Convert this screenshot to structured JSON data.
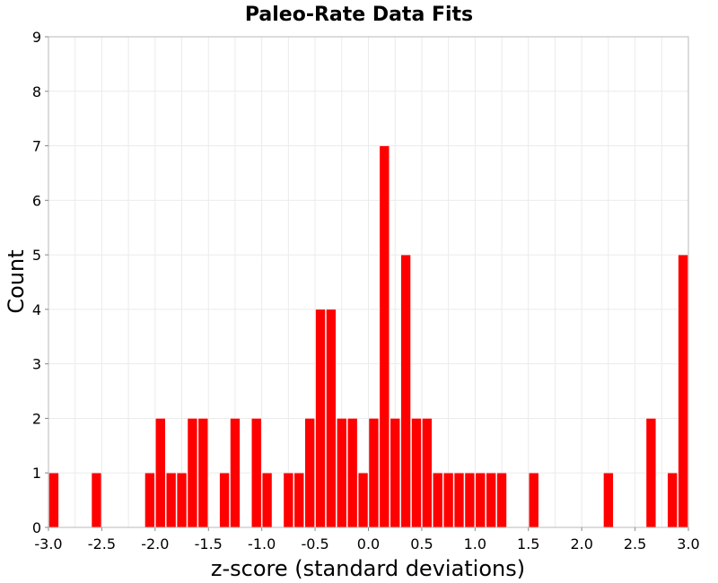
{
  "chart_data": {
    "type": "bar",
    "title": "Paleo-Rate Data Fits",
    "xlabel": "z-score (standard deviations)",
    "ylabel": "Count",
    "xlim": [
      -3.0,
      3.0
    ],
    "ylim": [
      0,
      9
    ],
    "bin_width": 0.1,
    "x_ticks": [
      "-3.0",
      "-2.5",
      "-2.0",
      "-1.5",
      "-1.0",
      "-0.5",
      "0.0",
      "0.5",
      "1.0",
      "1.5",
      "2.0",
      "2.5",
      "3.0"
    ],
    "y_ticks": [
      "0",
      "1",
      "2",
      "3",
      "4",
      "5",
      "6",
      "7",
      "8",
      "9"
    ],
    "grid": true,
    "bar_color": "#ff0000",
    "bins": [
      {
        "x": -2.95,
        "count": 1
      },
      {
        "x": -2.55,
        "count": 1
      },
      {
        "x": -2.05,
        "count": 1
      },
      {
        "x": -1.95,
        "count": 2
      },
      {
        "x": -1.85,
        "count": 1
      },
      {
        "x": -1.75,
        "count": 1
      },
      {
        "x": -1.65,
        "count": 2
      },
      {
        "x": -1.55,
        "count": 2
      },
      {
        "x": -1.35,
        "count": 1
      },
      {
        "x": -1.25,
        "count": 2
      },
      {
        "x": -1.05,
        "count": 2
      },
      {
        "x": -0.95,
        "count": 1
      },
      {
        "x": -0.75,
        "count": 1
      },
      {
        "x": -0.65,
        "count": 1
      },
      {
        "x": -0.55,
        "count": 2
      },
      {
        "x": -0.45,
        "count": 4
      },
      {
        "x": -0.35,
        "count": 4
      },
      {
        "x": -0.25,
        "count": 2
      },
      {
        "x": -0.15,
        "count": 2
      },
      {
        "x": -0.05,
        "count": 1
      },
      {
        "x": 0.05,
        "count": 2
      },
      {
        "x": 0.15,
        "count": 7
      },
      {
        "x": 0.25,
        "count": 2
      },
      {
        "x": 0.35,
        "count": 5
      },
      {
        "x": 0.45,
        "count": 2
      },
      {
        "x": 0.55,
        "count": 2
      },
      {
        "x": 0.65,
        "count": 1
      },
      {
        "x": 0.75,
        "count": 1
      },
      {
        "x": 0.85,
        "count": 1
      },
      {
        "x": 0.95,
        "count": 1
      },
      {
        "x": 1.05,
        "count": 1
      },
      {
        "x": 1.15,
        "count": 1
      },
      {
        "x": 1.25,
        "count": 1
      },
      {
        "x": 1.55,
        "count": 1
      },
      {
        "x": 2.25,
        "count": 1
      },
      {
        "x": 2.65,
        "count": 2
      },
      {
        "x": 2.85,
        "count": 1
      },
      {
        "x": 2.95,
        "count": 5
      }
    ]
  }
}
